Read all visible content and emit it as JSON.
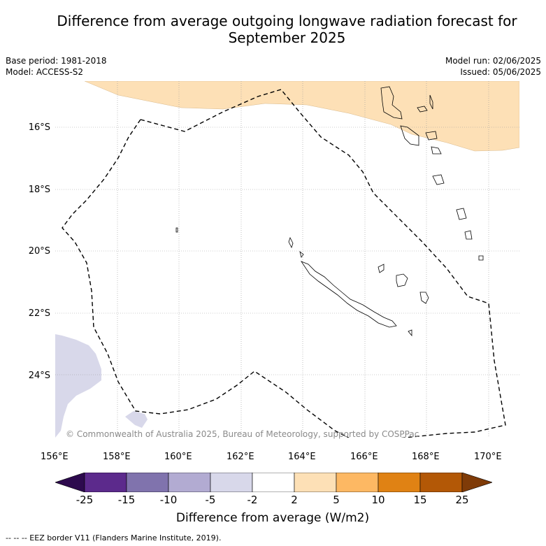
{
  "title_line1": "Difference from average outgoing longwave radiation forecast for",
  "title_line2": "September 2025",
  "base_period": "Base period: 1981-2018",
  "model": "Model: ACCESS-S2",
  "model_run": "Model run: 02/06/2025",
  "issued": "Issued: 05/06/2025",
  "copyright": "© Commonwealth of Australia 2025, Bureau of Meteorology, supported by COSPPac",
  "footnote": "--  --  -- EEZ border V11 (Flanders Marine Institute, 2019).",
  "colorbar_title": "Difference from average (W/m2)",
  "map": {
    "lon_range": [
      156,
      171
    ],
    "lat_range": [
      -26.1,
      -14.6
    ],
    "lat_ticks": [
      "16°S",
      "18°S",
      "20°S",
      "22°S",
      "24°S"
    ],
    "lon_ticks": [
      "156°E",
      "158°E",
      "160°E",
      "162°E",
      "164°E",
      "166°E",
      "168°E",
      "170°E"
    ],
    "grid": true
  },
  "colorbar": {
    "ticks": [
      "-25",
      "-15",
      "-10",
      "-5",
      "-2",
      "2",
      "5",
      "10",
      "15",
      "25"
    ],
    "colors": [
      "#2d0a4e",
      "#5c2a8c",
      "#8073ad",
      "#b2abd2",
      "#d8d8ea",
      "#ffffff",
      "#fde0b6",
      "#fdb863",
      "#e08214",
      "#b35806",
      "#7f3b08"
    ]
  },
  "colors": {
    "positive_anomaly": "#fde0b6",
    "negative_anomaly": "#d8d8ea",
    "grid": "#999999"
  }
}
